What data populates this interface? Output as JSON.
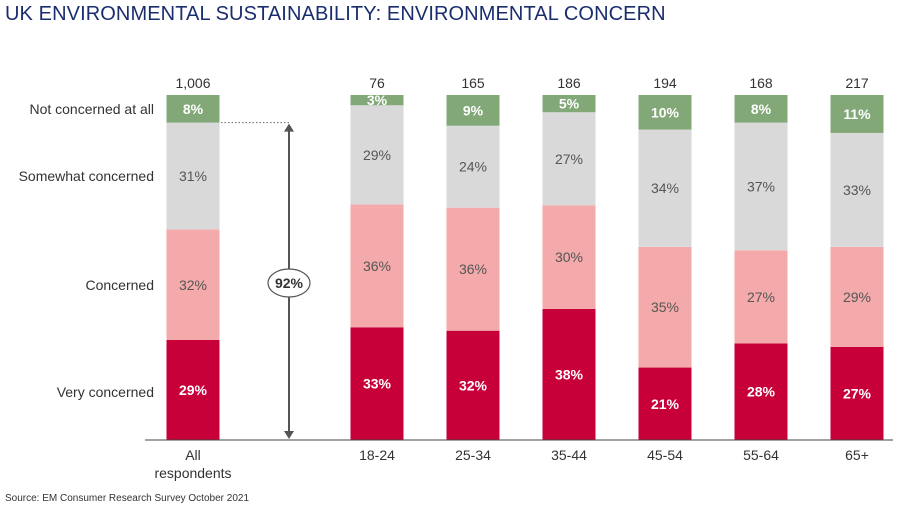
{
  "chart_data": {
    "type": "bar",
    "stacked": true,
    "title": "UK ENVIRONMENTAL SUSTAINABILITY: ENVIRONMENTAL CONCERN",
    "categories": [
      "All respondents",
      "18-24",
      "25-34",
      "35-44",
      "45-54",
      "55-64",
      "65+"
    ],
    "sample_sizes": [
      "1,006",
      "76",
      "165",
      "186",
      "194",
      "168",
      "217"
    ],
    "series": [
      {
        "name": "Very concerned",
        "color": "#c8003a",
        "values": [
          29,
          33,
          32,
          38,
          21,
          28,
          27
        ]
      },
      {
        "name": "Concerned",
        "color": "#f4aaaa",
        "values": [
          32,
          36,
          36,
          30,
          35,
          27,
          29
        ]
      },
      {
        "name": "Somewhat concerned",
        "color": "#d9d9d9",
        "values": [
          31,
          29,
          24,
          27,
          34,
          37,
          33
        ]
      },
      {
        "name": "Not concerned at all",
        "color": "#82a878",
        "values": [
          8,
          3,
          9,
          5,
          10,
          8,
          11
        ]
      }
    ],
    "annotation": {
      "label": "92%",
      "description": "Very concerned + Concerned + Somewhat concerned (All respondents)"
    },
    "value_suffix": "%",
    "ylim": [
      0,
      100
    ]
  },
  "source": "Source: EM Consumer Research Survey October 2021"
}
